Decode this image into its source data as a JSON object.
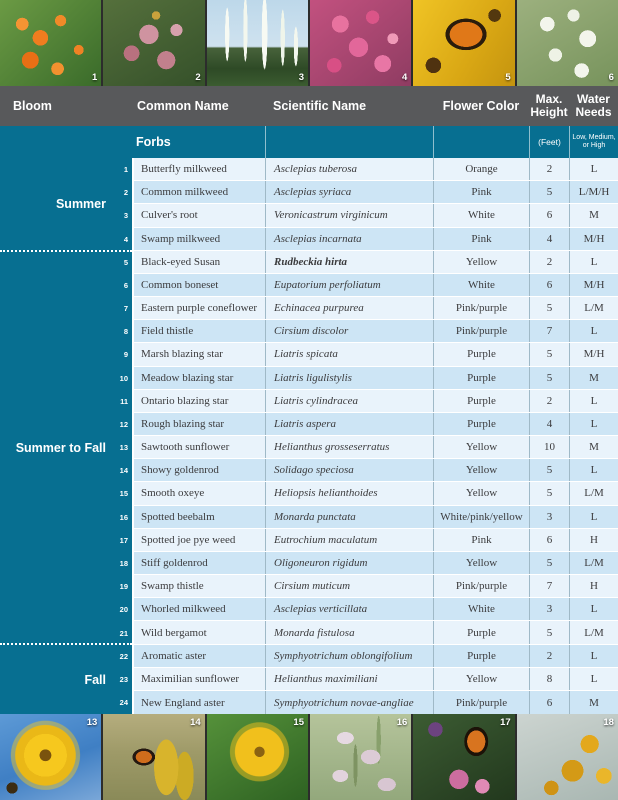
{
  "colors": {
    "teal": "#076f91",
    "header_gray": "#58595b",
    "row_light": "#e9f3fb",
    "row_blue": "#cde5f5",
    "cell_border": "#9fb9c7",
    "text": "#3b3b3d"
  },
  "top_photos": [
    {
      "number": "1",
      "name": "butterfly-milkweed-photo",
      "css": "ph1"
    },
    {
      "number": "2",
      "name": "common-milkweed-photo",
      "css": "ph2"
    },
    {
      "number": "3",
      "name": "culvers-root-photo",
      "css": "ph3"
    },
    {
      "number": "4",
      "name": "swamp-milkweed-photo",
      "css": "ph4"
    },
    {
      "number": "5",
      "name": "black-eyed-susan-monarch-photo",
      "css": "ph5"
    },
    {
      "number": "6",
      "name": "common-boneset-photo",
      "css": "ph6"
    }
  ],
  "bottom_photos": [
    {
      "number": "13",
      "name": "sawtooth-sunflower-photo",
      "css": "ph13"
    },
    {
      "number": "14",
      "name": "showy-goldenrod-monarch-photo",
      "css": "ph14"
    },
    {
      "number": "15",
      "name": "smooth-oxeye-photo",
      "css": "ph15"
    },
    {
      "number": "16",
      "name": "spotted-beebalm-photo",
      "css": "ph16"
    },
    {
      "number": "17",
      "name": "spotted-joe-pye-weed-monarch-photo",
      "css": "ph17"
    },
    {
      "number": "18",
      "name": "stiff-goldenrod-photo",
      "css": "ph18"
    }
  ],
  "header": {
    "bloom": "Bloom",
    "common_name": "Common Name",
    "scientific_name": "Scientific Name",
    "flower_color": "Flower Color",
    "max_height": "Max. Height",
    "water_needs": "Water Needs"
  },
  "subheader": {
    "group": "Forbs",
    "feet": "(Feet)",
    "water_scale": "Low, Medium, or High"
  },
  "sections": [
    {
      "label": "Summer",
      "rows": [
        {
          "num": "1",
          "common": "Butterfly milkweed",
          "scientific": "Asclepias tuberosa",
          "color": "Orange",
          "height": "2",
          "water": "L"
        },
        {
          "num": "2",
          "common": "Common milkweed",
          "scientific": "Asclepias syriaca",
          "color": "Pink",
          "height": "5",
          "water": "L/M/H"
        },
        {
          "num": "3",
          "common": "Culver's root",
          "scientific": "Veronicastrum virginicum",
          "color": "White",
          "height": "6",
          "water": "M"
        },
        {
          "num": "4",
          "common": "Swamp milkweed",
          "scientific": "Asclepias incarnata",
          "color": "Pink",
          "height": "4",
          "water": "M/H"
        }
      ]
    },
    {
      "label": "Summer to Fall",
      "rows": [
        {
          "num": "5",
          "common": "Black-eyed Susan",
          "scientific": "Rudbeckia hirta",
          "bold": true,
          "color": "Yellow",
          "height": "2",
          "water": "L"
        },
        {
          "num": "6",
          "common": "Common boneset",
          "scientific": "Eupatorium perfoliatum",
          "color": "White",
          "height": "6",
          "water": "M/H"
        },
        {
          "num": "7",
          "common": "Eastern purple coneflower",
          "scientific": "Echinacea purpurea",
          "color": "Pink/purple",
          "height": "5",
          "water": "L/M"
        },
        {
          "num": "8",
          "common": "Field thistle",
          "scientific": "Cirsium discolor",
          "color": "Pink/purple",
          "height": "7",
          "water": "L"
        },
        {
          "num": "9",
          "common": "Marsh blazing star",
          "scientific": "Liatris spicata",
          "color": "Purple",
          "height": "5",
          "water": "M/H"
        },
        {
          "num": "10",
          "common": "Meadow blazing star",
          "scientific": "Liatris ligulistylis",
          "color": "Purple",
          "height": "5",
          "water": "M"
        },
        {
          "num": "11",
          "common": "Ontario blazing star",
          "scientific": "Liatris cylindracea",
          "color": "Purple",
          "height": "2",
          "water": "L"
        },
        {
          "num": "12",
          "common": "Rough blazing star",
          "scientific": "Liatris aspera",
          "color": "Purple",
          "height": "4",
          "water": "L"
        },
        {
          "num": "13",
          "common": "Sawtooth sunflower",
          "scientific": "Helianthus grosseserratus",
          "color": "Yellow",
          "height": "10",
          "water": "M"
        },
        {
          "num": "14",
          "common": "Showy goldenrod",
          "scientific": "Solidago speciosa",
          "color": "Yellow",
          "height": "5",
          "water": "L"
        },
        {
          "num": "15",
          "common": "Smooth oxeye",
          "scientific": "Heliopsis helianthoides",
          "color": "Yellow",
          "height": "5",
          "water": "L/M"
        },
        {
          "num": "16",
          "common": "Spotted beebalm",
          "scientific": "Monarda punctata",
          "color": "White/pink/yellow",
          "height": "3",
          "water": "L"
        },
        {
          "num": "17",
          "common": "Spotted joe pye weed",
          "scientific": "Eutrochium maculatum",
          "color": "Pink",
          "height": "6",
          "water": "H"
        },
        {
          "num": "18",
          "common": "Stiff goldenrod",
          "scientific": "Oligoneuron rigidum",
          "color": "Yellow",
          "height": "5",
          "water": "L/M"
        },
        {
          "num": "19",
          "common": "Swamp thistle",
          "scientific": "Cirsium muticum",
          "color": "Pink/purple",
          "height": "7",
          "water": "H"
        },
        {
          "num": "20",
          "common": "Whorled milkweed",
          "scientific": "Asclepias verticillata",
          "color": "White",
          "height": "3",
          "water": "L"
        },
        {
          "num": "21",
          "common": "Wild bergamot",
          "scientific": "Monarda fistulosa",
          "color": "Purple",
          "height": "5",
          "water": "L/M"
        }
      ]
    },
    {
      "label": "Fall",
      "rows": [
        {
          "num": "22",
          "common": "Aromatic aster",
          "scientific": "Symphyotrichum oblongifolium",
          "color": "Purple",
          "height": "2",
          "water": "L"
        },
        {
          "num": "23",
          "common": "Maximilian sunflower",
          "scientific": "Helianthus maximiliani",
          "color": "Yellow",
          "height": "8",
          "water": "L"
        },
        {
          "num": "24",
          "common": "New England aster",
          "scientific": "Symphyotrichum novae-angliae",
          "color": "Pink/purple",
          "height": "6",
          "water": "M"
        }
      ]
    }
  ]
}
